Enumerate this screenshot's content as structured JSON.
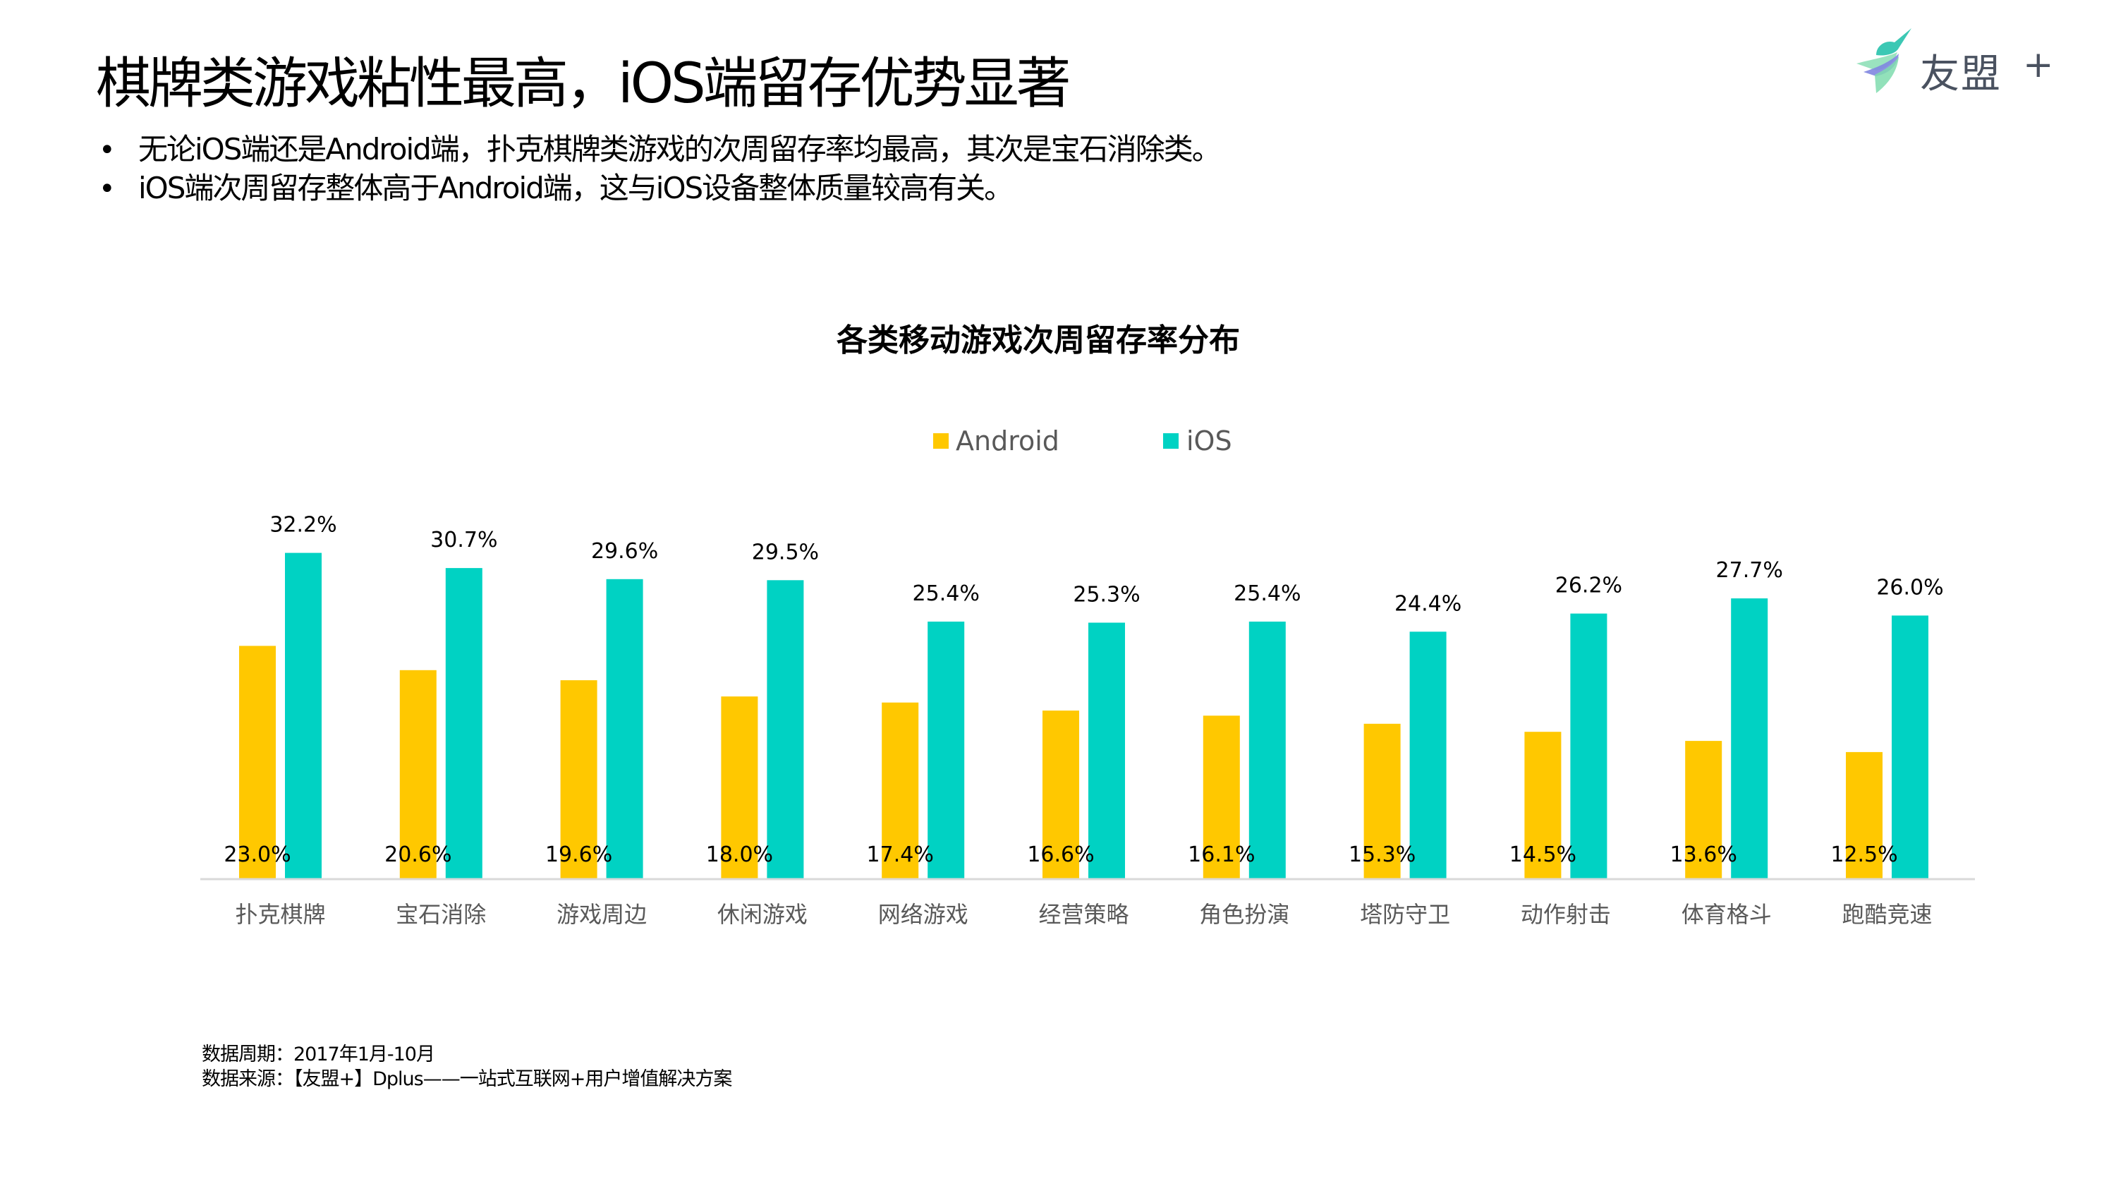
{
  "slide": {
    "title": "棋牌类游戏粘性最高，iOS端留存优势显著",
    "bullets": [
      "无论iOS端还是Android端，扑克棋牌类游戏的次周留存率均最高，其次是宝石消除类。",
      "iOS端次周留存整体高于Android端，这与iOS设备整体质量较高有关。"
    ],
    "bullet_symbol": "•",
    "logo": {
      "icon": "umeng-bird-logo-icon",
      "text": "友盟",
      "suffix": "+"
    },
    "footer": [
      "数据周期：2017年1月-10月",
      "数据来源：【友盟+】Dplus——一站式互联网+用户增值解决方案"
    ]
  },
  "colors": {
    "android": "#FFC800",
    "ios": "#00D2C3",
    "axis": "#D9D9D9",
    "label_grey": "#595959"
  },
  "chart_data": {
    "type": "bar",
    "title": "各类移动游戏次周留存率分布",
    "xlabel": "",
    "ylabel": "",
    "ylim": [
      0,
      35
    ],
    "grid": false,
    "legend_position": "top-center",
    "value_suffix": "%",
    "categories": [
      "扑克棋牌",
      "宝石消除",
      "游戏周边",
      "休闲游戏",
      "网络游戏",
      "经营策略",
      "角色扮演",
      "塔防守卫",
      "动作射击",
      "体育格斗",
      "跑酷竞速"
    ],
    "series": [
      {
        "name": "Android",
        "values": [
          23.0,
          20.6,
          19.6,
          18.0,
          17.4,
          16.6,
          16.1,
          15.3,
          14.5,
          13.6,
          12.5
        ]
      },
      {
        "name": "iOS",
        "values": [
          32.2,
          30.7,
          29.6,
          29.5,
          25.4,
          25.3,
          25.4,
          24.4,
          26.2,
          27.7,
          26.0
        ]
      }
    ]
  }
}
